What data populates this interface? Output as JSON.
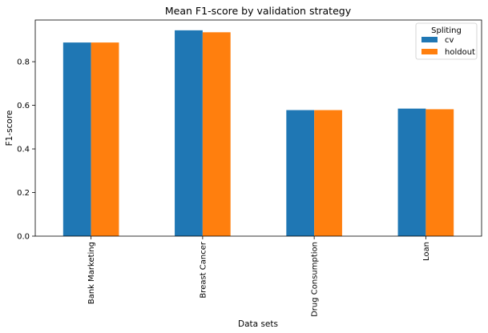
{
  "chart_data": {
    "type": "bar",
    "title": "Mean F1-score by validation strategy",
    "xlabel": "Data sets",
    "ylabel": "F1-score",
    "categories": [
      "Bank Marketing",
      "Breast Cancer",
      "Drug Consumption",
      "Loan"
    ],
    "series": [
      {
        "name": "cv",
        "color": "#1f77b4",
        "values": [
          0.888,
          0.944,
          0.578,
          0.585
        ]
      },
      {
        "name": "holdout",
        "color": "#ff7f0e",
        "values": [
          0.888,
          0.935,
          0.578,
          0.582
        ]
      }
    ],
    "ylim": [
      0,
      0.9912
    ],
    "yticks": [
      0.0,
      0.2,
      0.4,
      0.6,
      0.8
    ],
    "ytick_labels": [
      "0.0",
      "0.2",
      "0.4",
      "0.6",
      "0.8"
    ],
    "grid": false,
    "legend": {
      "title": "Spliting",
      "position": "top-right"
    }
  }
}
